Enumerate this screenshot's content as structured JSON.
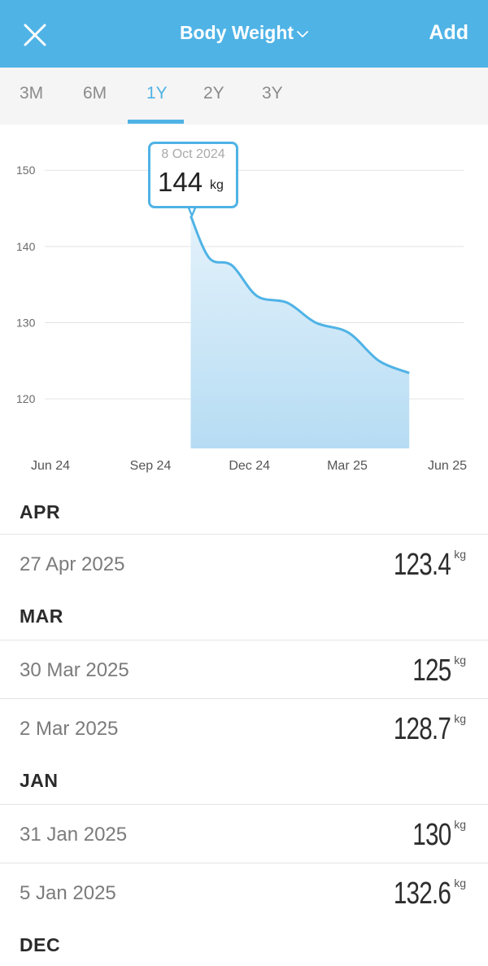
{
  "header": {
    "title": "Body Weight",
    "add_label": "Add",
    "close_icon": "close-icon",
    "dropdown_icon": "chevron-down-icon",
    "background_color": "#4fb3e6"
  },
  "tabs": [
    {
      "label": "3M",
      "active": false
    },
    {
      "label": "6M",
      "active": false
    },
    {
      "label": "1Y",
      "active": true
    },
    {
      "label": "2Y",
      "active": false
    },
    {
      "label": "3Y",
      "active": false
    }
  ],
  "tooltip": {
    "date": "8 Oct 2024",
    "value": "144",
    "unit": "kg"
  },
  "chart_data": {
    "type": "area",
    "x": [
      "2024-10-08",
      "2024-10-25",
      "2024-11-15",
      "2024-12-08",
      "2025-01-05",
      "2025-01-31",
      "2025-03-02",
      "2025-03-30",
      "2025-04-27"
    ],
    "y": [
      144,
      138.5,
      137.5,
      133.5,
      132.6,
      130,
      128.7,
      125,
      123.4
    ],
    "x_tick_labels": [
      "Jun 24",
      "Sep 24",
      "Dec 24",
      "Mar 25",
      "Jun 25"
    ],
    "x_ticks": [
      "2024-06-01",
      "2024-09-01",
      "2024-12-01",
      "2025-03-01",
      "2025-06-01"
    ],
    "y_ticks": [
      120,
      130,
      140,
      150
    ],
    "ylim": [
      113.5,
      156
    ],
    "grid": true,
    "color": "#4fb3e6",
    "fill_color": "#cfe8f7"
  },
  "entries": [
    {
      "type": "section",
      "label": "APR"
    },
    {
      "type": "row",
      "date": "27 Apr 2025",
      "value": "123.4",
      "unit": "kg"
    },
    {
      "type": "section",
      "label": "MAR"
    },
    {
      "type": "row",
      "date": "30 Mar 2025",
      "value": "125",
      "unit": "kg"
    },
    {
      "type": "row",
      "date": "2 Mar 2025",
      "value": "128.7",
      "unit": "kg"
    },
    {
      "type": "section",
      "label": "JAN"
    },
    {
      "type": "row",
      "date": "31 Jan 2025",
      "value": "130",
      "unit": "kg"
    },
    {
      "type": "row",
      "date": "5 Jan 2025",
      "value": "132.6",
      "unit": "kg"
    },
    {
      "type": "section",
      "label": "DEC"
    }
  ]
}
